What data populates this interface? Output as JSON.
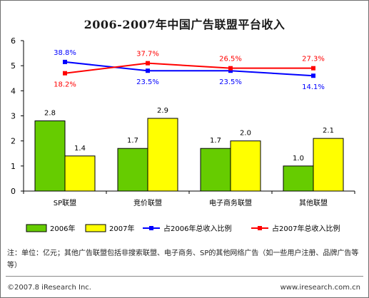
{
  "chart_data": {
    "type": "bar+line",
    "title": "2006-2007年中国广告联盟平台收入",
    "categories": [
      "SP联盟",
      "竞价联盟",
      "电子商务联盟",
      "其他联盟"
    ],
    "ylim": [
      0,
      6
    ],
    "yticks": [
      0,
      1,
      2,
      3,
      4,
      5,
      6
    ],
    "grid": false,
    "series": [
      {
        "name": "2006年",
        "type": "bar",
        "color": "#66cc00",
        "values": [
          2.8,
          1.7,
          1.7,
          1.0
        ],
        "labels": [
          "2.8",
          "1.7",
          "1.7",
          "1.0"
        ]
      },
      {
        "name": "2007年",
        "type": "bar",
        "color": "#ffff00",
        "values": [
          1.4,
          2.9,
          2.0,
          2.1
        ],
        "labels": [
          "1.4",
          "2.9",
          "2.0",
          "2.1"
        ]
      },
      {
        "name": "占2006年总收入比例",
        "type": "line",
        "color": "#0000ff",
        "values": [
          38.8,
          23.5,
          23.5,
          14.1
        ],
        "labels": [
          "38.8%",
          "23.5%",
          "23.5%",
          "14.1%"
        ],
        "plot_y": [
          5.15,
          4.8,
          4.8,
          4.6
        ]
      },
      {
        "name": "占2007年总收入比例",
        "type": "line",
        "color": "#ff0000",
        "values": [
          18.2,
          37.7,
          26.5,
          27.3
        ],
        "labels": [
          "18.2%",
          "37.7%",
          "26.5%",
          "27.3%"
        ],
        "plot_y": [
          4.7,
          5.1,
          4.9,
          4.9
        ]
      }
    ],
    "legend_position": "bottom"
  },
  "note": "注：单位：亿元；其他广告联盟包括非搜索联盟、电子商务、SP的其他网络广告（如一些用户注册、品牌广告等等）",
  "copyright": "©2007.8 iResearch Inc.",
  "website": "www.iresearch.com.cn"
}
